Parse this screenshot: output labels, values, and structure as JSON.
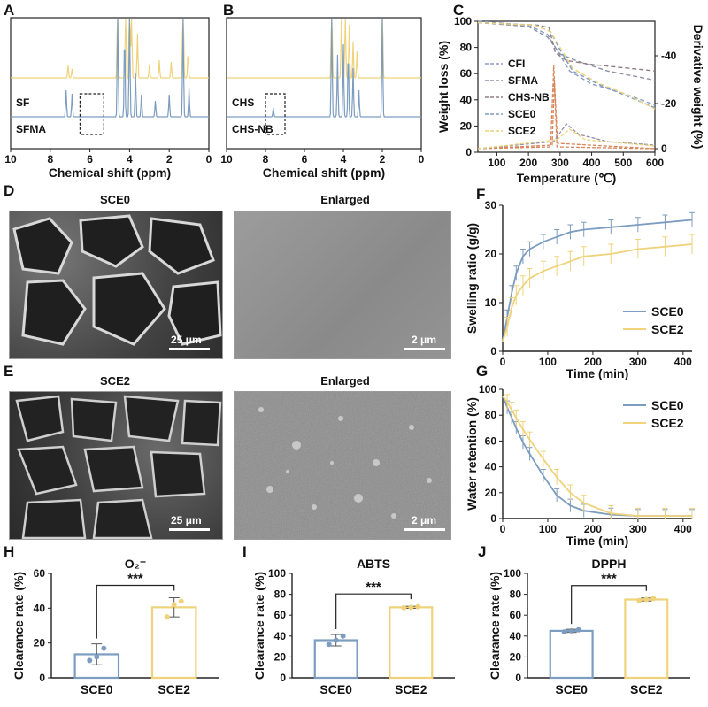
{
  "panels": {
    "A": "A",
    "B": "B",
    "C": "C",
    "D": "D",
    "E": "E",
    "F": "F",
    "G": "G",
    "H": "H",
    "I": "I",
    "J": "J"
  },
  "sem": {
    "d_title": "SCE0",
    "d_enlarged": "Enlarged",
    "d_scale_main": "25 μm",
    "d_scale_enl": "2 μm",
    "e_title": "SCE2",
    "e_enlarged": "Enlarged",
    "e_scale_main": "25 μm",
    "e_scale_enl": "2 μm"
  },
  "colors": {
    "sce0": "#7c9cc0",
    "sce2": "#efd27a",
    "cfi": "#8a9cc6",
    "sfma": "#8d8fa8",
    "chsnb": "#8f7e7e",
    "peak": "#d8855a"
  },
  "chart_data": [
    {
      "id": "A",
      "type": "line",
      "xlabel": "Chemical shift (ppm)",
      "xlim": [
        10,
        0
      ],
      "xticks": [
        "10",
        "8",
        "6",
        "4",
        "2",
        "0"
      ],
      "series": [
        {
          "name": "SF",
          "color": "#efd27a"
        },
        {
          "name": "SFMA",
          "color": "#7c9cc0"
        }
      ],
      "highlight_range_ppm": [
        6.5,
        5.3
      ]
    },
    {
      "id": "B",
      "type": "line",
      "xlabel": "Chemical shift (ppm)",
      "xlim": [
        10,
        0
      ],
      "xticks": [
        "10",
        "8",
        "6",
        "4",
        "2",
        "0"
      ],
      "series": [
        {
          "name": "CHS",
          "color": "#efd27a"
        },
        {
          "name": "CHS-NB",
          "color": "#7c9cc0"
        }
      ],
      "highlight_range_ppm": [
        8,
        7
      ]
    },
    {
      "id": "C",
      "type": "line",
      "xlabel": "Temperature (℃)",
      "ylabel": "Weight loss (%)",
      "y2label": "Derivative weight (%)",
      "xlim": [
        40,
        600
      ],
      "ylim": [
        0,
        100
      ],
      "xticks": [
        "100",
        "200",
        "300",
        "400",
        "500",
        "600"
      ],
      "yticks": [
        "0",
        "20",
        "40",
        "60",
        "80",
        "100"
      ],
      "y2ticks": [
        "0",
        "-20",
        "-40"
      ],
      "legend": [
        "CFI",
        "SFMA",
        "CHS-NB",
        "SCE0",
        "SCE2"
      ]
    },
    {
      "id": "F",
      "type": "line",
      "xlabel": "Time (min)",
      "ylabel": "Swelling ratio (g/g)",
      "xlim": [
        0,
        420
      ],
      "ylim": [
        0,
        30
      ],
      "xticks": [
        "0",
        "100",
        "200",
        "300",
        "400"
      ],
      "yticks": [
        "0",
        "10",
        "20",
        "30"
      ],
      "x": [
        0,
        10,
        20,
        30,
        45,
        60,
        90,
        120,
        150,
        180,
        240,
        300,
        360,
        420
      ],
      "series": [
        {
          "name": "SCE0",
          "values": [
            2,
            7,
            12,
            16,
            19.5,
            21,
            22.5,
            23.5,
            24.5,
            25,
            25.5,
            26,
            26.5,
            27
          ],
          "err": 1.5
        },
        {
          "name": "SCE2",
          "values": [
            2,
            5,
            9,
            11.5,
            13.5,
            15,
            16.5,
            17.5,
            18.5,
            19.5,
            20,
            21,
            21.5,
            22
          ],
          "err": 2
        }
      ],
      "legend_position": "bottom-right"
    },
    {
      "id": "G",
      "type": "line",
      "xlabel": "Time (min)",
      "ylabel": "Water retention (%)",
      "xlim": [
        0,
        420
      ],
      "ylim": [
        0,
        100
      ],
      "xticks": [
        "0",
        "100",
        "200",
        "300",
        "400"
      ],
      "yticks": [
        "0",
        "20",
        "40",
        "60",
        "80",
        "100"
      ],
      "x": [
        0,
        10,
        20,
        30,
        45,
        60,
        90,
        120,
        150,
        180,
        240,
        300,
        360,
        420
      ],
      "series": [
        {
          "name": "SCE0",
          "values": [
            95,
            86,
            78,
            70,
            59,
            50,
            33,
            18,
            10,
            6,
            3,
            2,
            2,
            2
          ],
          "err": 5
        },
        {
          "name": "SCE2",
          "values": [
            95,
            90,
            84,
            78,
            69,
            61,
            46,
            32,
            20,
            12,
            4,
            2,
            2,
            2
          ],
          "err": 6
        }
      ],
      "legend_position": "top-right"
    },
    {
      "id": "H",
      "type": "bar",
      "title": "O₂⁻",
      "ylabel": "Clearance rate (%)",
      "categories": [
        "SCE0",
        "SCE2"
      ],
      "values": [
        13.5,
        40.5
      ],
      "err": [
        6,
        5.5
      ],
      "points": [
        [
          10,
          12,
          17
        ],
        [
          35,
          42,
          44
        ]
      ],
      "ylim": [
        0,
        60
      ],
      "yticks": [
        "0",
        "20",
        "40",
        "60"
      ],
      "significance": "***"
    },
    {
      "id": "I",
      "type": "bar",
      "title": "ABTS",
      "ylabel": "Clearance rate (%)",
      "categories": [
        "SCE0",
        "SCE2"
      ],
      "values": [
        36,
        67.5
      ],
      "err": [
        5.5,
        1
      ],
      "points": [
        [
          32,
          36,
          40
        ],
        [
          67,
          67.5,
          68
        ]
      ],
      "ylim": [
        0,
        100
      ],
      "yticks": [
        "0",
        "20",
        "40",
        "60",
        "80",
        "100"
      ],
      "significance": "***"
    },
    {
      "id": "J",
      "type": "bar",
      "title": "DPPH",
      "ylabel": "Clearance rate (%)",
      "categories": [
        "SCE0",
        "SCE2"
      ],
      "values": [
        45,
        75
      ],
      "err": [
        1.5,
        1.5
      ],
      "points": [
        [
          44,
          45,
          46
        ],
        [
          74,
          75,
          76
        ]
      ],
      "ylim": [
        0,
        100
      ],
      "yticks": [
        "0",
        "20",
        "40",
        "60",
        "80",
        "100"
      ],
      "significance": "***"
    }
  ]
}
